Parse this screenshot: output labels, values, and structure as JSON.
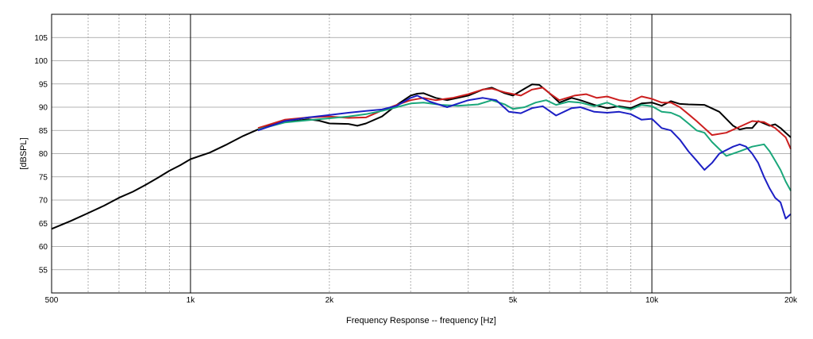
{
  "chart_data": {
    "type": "line",
    "title": "",
    "xlabel": "Frequency Response -- frequency [Hz]",
    "ylabel": "[dBSPL]",
    "xscale": "log",
    "xlim": [
      500,
      20000
    ],
    "ylim": [
      50,
      110
    ],
    "x_tick_labels": [
      {
        "value": 500,
        "label": "500"
      },
      {
        "value": 1000,
        "label": "1k"
      },
      {
        "value": 2000,
        "label": "2k"
      },
      {
        "value": 5000,
        "label": "5k"
      },
      {
        "value": 10000,
        "label": "10k"
      },
      {
        "value": 20000,
        "label": "20k"
      }
    ],
    "y_ticks": [
      55,
      60,
      65,
      70,
      75,
      80,
      85,
      90,
      95,
      100,
      105
    ],
    "grid": true,
    "legend": "none",
    "series": [
      {
        "color": "#000000",
        "points": [
          [
            500,
            63.8
          ],
          [
            550,
            65.5
          ],
          [
            600,
            67.2
          ],
          [
            650,
            68.8
          ],
          [
            700,
            70.5
          ],
          [
            750,
            71.8
          ],
          [
            800,
            73.3
          ],
          [
            850,
            74.8
          ],
          [
            900,
            76.3
          ],
          [
            950,
            77.5
          ],
          [
            1000,
            78.8
          ],
          [
            1100,
            80.2
          ],
          [
            1200,
            82.0
          ],
          [
            1300,
            83.8
          ],
          [
            1400,
            85.2
          ],
          [
            1500,
            86.2
          ],
          [
            1600,
            86.9
          ],
          [
            1700,
            87.1
          ],
          [
            1800,
            87.4
          ],
          [
            1900,
            87.1
          ],
          [
            2000,
            86.5
          ],
          [
            2200,
            86.4
          ],
          [
            2300,
            86.0
          ],
          [
            2400,
            86.5
          ],
          [
            2600,
            88.0
          ],
          [
            2800,
            90.5
          ],
          [
            3000,
            92.5
          ],
          [
            3100,
            92.9
          ],
          [
            3200,
            93.0
          ],
          [
            3400,
            92.0
          ],
          [
            3600,
            91.5
          ],
          [
            4000,
            92.5
          ],
          [
            4300,
            93.8
          ],
          [
            4500,
            94.2
          ],
          [
            4800,
            93.0
          ],
          [
            5000,
            92.5
          ],
          [
            5300,
            94.0
          ],
          [
            5500,
            94.9
          ],
          [
            5700,
            94.8
          ],
          [
            6000,
            93.0
          ],
          [
            6300,
            91.0
          ],
          [
            6700,
            92.0
          ],
          [
            7000,
            91.5
          ],
          [
            7500,
            90.5
          ],
          [
            8000,
            89.8
          ],
          [
            8500,
            90.2
          ],
          [
            9000,
            89.8
          ],
          [
            9500,
            90.8
          ],
          [
            10000,
            91.0
          ],
          [
            10500,
            90.3
          ],
          [
            11000,
            91.3
          ],
          [
            11500,
            90.7
          ],
          [
            12000,
            90.6
          ],
          [
            13000,
            90.5
          ],
          [
            14000,
            89.0
          ],
          [
            15000,
            86.0
          ],
          [
            15500,
            85.2
          ],
          [
            16000,
            85.5
          ],
          [
            16500,
            85.5
          ],
          [
            17000,
            87.0
          ],
          [
            17500,
            86.5
          ],
          [
            18000,
            86.0
          ],
          [
            18500,
            86.3
          ],
          [
            19000,
            85.5
          ],
          [
            19500,
            84.5
          ],
          [
            20000,
            83.5
          ]
        ]
      },
      {
        "color": "#cc1f1f",
        "points": [
          [
            1400,
            85.5
          ],
          [
            1600,
            87.3
          ],
          [
            1800,
            87.8
          ],
          [
            2000,
            88.0
          ],
          [
            2200,
            87.7
          ],
          [
            2400,
            87.8
          ],
          [
            2600,
            89.3
          ],
          [
            2800,
            90.5
          ],
          [
            3000,
            91.5
          ],
          [
            3200,
            92.0
          ],
          [
            3400,
            91.5
          ],
          [
            3700,
            92.0
          ],
          [
            4000,
            92.8
          ],
          [
            4300,
            93.8
          ],
          [
            4500,
            94.0
          ],
          [
            4800,
            93.2
          ],
          [
            5200,
            92.5
          ],
          [
            5500,
            93.8
          ],
          [
            5800,
            94.2
          ],
          [
            6000,
            93.0
          ],
          [
            6300,
            91.5
          ],
          [
            6800,
            92.5
          ],
          [
            7200,
            92.8
          ],
          [
            7600,
            92.0
          ],
          [
            8000,
            92.3
          ],
          [
            8500,
            91.5
          ],
          [
            9000,
            91.2
          ],
          [
            9500,
            92.3
          ],
          [
            10000,
            91.8
          ],
          [
            10500,
            91.0
          ],
          [
            11000,
            91.0
          ],
          [
            11500,
            90.0
          ],
          [
            12000,
            88.5
          ],
          [
            12500,
            87.0
          ],
          [
            13500,
            84.0
          ],
          [
            14500,
            84.5
          ],
          [
            15500,
            85.8
          ],
          [
            16500,
            87.0
          ],
          [
            17500,
            86.8
          ],
          [
            18500,
            85.5
          ],
          [
            19500,
            83.5
          ],
          [
            20000,
            81.0
          ]
        ]
      },
      {
        "color": "#1aa77a",
        "points": [
          [
            1400,
            85.2
          ],
          [
            1600,
            86.7
          ],
          [
            1800,
            87.2
          ],
          [
            2000,
            87.6
          ],
          [
            2200,
            88.0
          ],
          [
            2400,
            88.5
          ],
          [
            2600,
            89.2
          ],
          [
            2800,
            90.0
          ],
          [
            3000,
            90.8
          ],
          [
            3200,
            91.0
          ],
          [
            3500,
            90.5
          ],
          [
            3800,
            90.3
          ],
          [
            4200,
            90.6
          ],
          [
            4500,
            91.5
          ],
          [
            4800,
            90.6
          ],
          [
            5000,
            89.6
          ],
          [
            5300,
            90.0
          ],
          [
            5600,
            91.0
          ],
          [
            5900,
            91.5
          ],
          [
            6200,
            90.5
          ],
          [
            6600,
            91.2
          ],
          [
            7000,
            91.0
          ],
          [
            7500,
            90.2
          ],
          [
            8000,
            91.0
          ],
          [
            8500,
            90.0
          ],
          [
            9000,
            89.5
          ],
          [
            9500,
            90.5
          ],
          [
            10000,
            90.2
          ],
          [
            10500,
            89.0
          ],
          [
            11000,
            88.8
          ],
          [
            11500,
            88.0
          ],
          [
            12000,
            86.5
          ],
          [
            12500,
            85.0
          ],
          [
            13000,
            84.5
          ],
          [
            13500,
            82.5
          ],
          [
            14500,
            79.5
          ],
          [
            15500,
            80.5
          ],
          [
            16500,
            81.5
          ],
          [
            17500,
            82.0
          ],
          [
            18000,
            80.5
          ],
          [
            18500,
            78.5
          ],
          [
            19000,
            76.5
          ],
          [
            19500,
            74.0
          ],
          [
            20000,
            72.0
          ]
        ]
      },
      {
        "color": "#1c1fc4",
        "points": [
          [
            1400,
            85.0
          ],
          [
            1600,
            87.0
          ],
          [
            1800,
            87.8
          ],
          [
            2000,
            88.3
          ],
          [
            2200,
            88.8
          ],
          [
            2400,
            89.2
          ],
          [
            2600,
            89.5
          ],
          [
            2800,
            90.3
          ],
          [
            3000,
            92.0
          ],
          [
            3100,
            92.5
          ],
          [
            3300,
            91.2
          ],
          [
            3600,
            90.0
          ],
          [
            4000,
            91.5
          ],
          [
            4300,
            92.0
          ],
          [
            4600,
            91.5
          ],
          [
            4900,
            89.0
          ],
          [
            5200,
            88.7
          ],
          [
            5500,
            89.8
          ],
          [
            5800,
            90.2
          ],
          [
            6200,
            88.2
          ],
          [
            6700,
            89.8
          ],
          [
            7000,
            90.0
          ],
          [
            7500,
            89.0
          ],
          [
            8000,
            88.8
          ],
          [
            8500,
            89.0
          ],
          [
            9000,
            88.5
          ],
          [
            9500,
            87.3
          ],
          [
            10000,
            87.5
          ],
          [
            10500,
            85.5
          ],
          [
            11000,
            85.0
          ],
          [
            11500,
            83.0
          ],
          [
            12000,
            80.5
          ],
          [
            12500,
            78.5
          ],
          [
            13000,
            76.5
          ],
          [
            13500,
            78.0
          ],
          [
            14000,
            80.0
          ],
          [
            15000,
            81.5
          ],
          [
            15500,
            82.0
          ],
          [
            16000,
            81.5
          ],
          [
            16500,
            80.0
          ],
          [
            17000,
            78.0
          ],
          [
            17500,
            75.0
          ],
          [
            18000,
            72.5
          ],
          [
            18500,
            70.5
          ],
          [
            19000,
            69.5
          ],
          [
            19500,
            66.0
          ],
          [
            20000,
            67.0
          ]
        ]
      }
    ]
  }
}
